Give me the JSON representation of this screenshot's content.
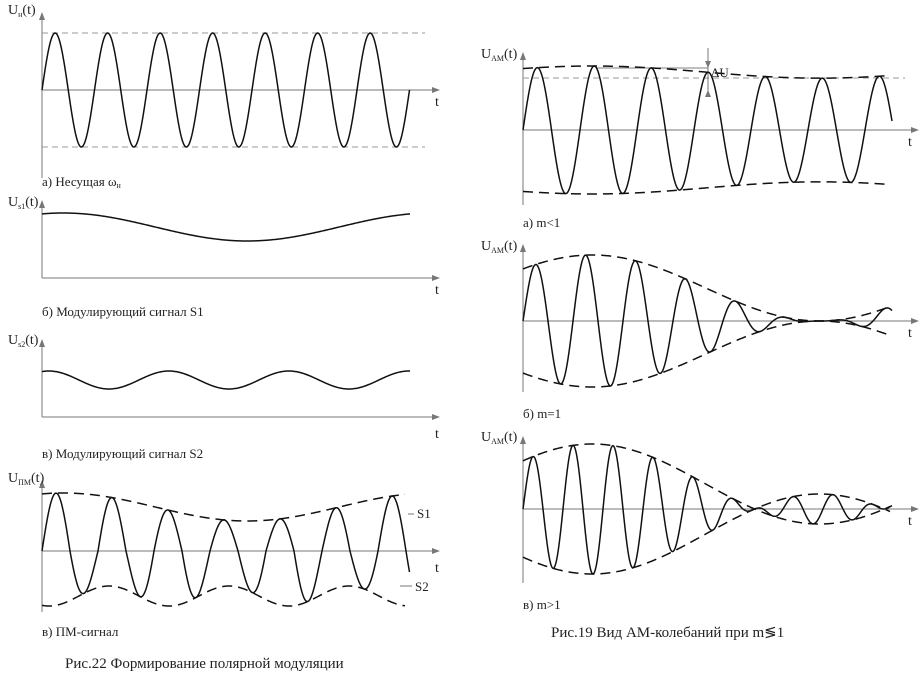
{
  "left_panels": [
    {
      "id": "carrier",
      "ylabel_main": "U",
      "ylabel_sub": "н",
      "ylabel_tail": "(t)",
      "xlabel": "t",
      "caption_main": "а) Несущая ω",
      "caption_sub": "н"
    },
    {
      "id": "mod-s1",
      "ylabel_main": "U",
      "ylabel_sub": "s1",
      "ylabel_tail": "(t)",
      "xlabel": "t",
      "caption": "б) Модулирующий сигнал S1"
    },
    {
      "id": "mod-s2",
      "ylabel_main": "U",
      "ylabel_sub": "s2",
      "ylabel_tail": "(t)",
      "xlabel": "t",
      "caption": "в) Модулирующий сигнал S2"
    },
    {
      "id": "pm-signal",
      "ylabel_main": "U",
      "ylabel_sub": "ПМ",
      "ylabel_tail": "(t)",
      "xlabel": "t",
      "caption": "в) ПМ-сигнал",
      "label_s1": "S1",
      "label_s2": "S2"
    }
  ],
  "left_figure_caption": "Рис.22  Формирование полярной модуляции",
  "right_panels": [
    {
      "id": "am-m-less-1",
      "ylabel_main": "U",
      "ylabel_sub": "AM",
      "ylabel_tail": "(t)",
      "xlabel": "t",
      "caption": "а) m<1",
      "delta_label": "ΔU",
      "m": 0.35
    },
    {
      "id": "am-m-equal-1",
      "ylabel_main": "U",
      "ylabel_sub": "AM",
      "ylabel_tail": "(t)",
      "xlabel": "t",
      "caption": "б) m=1",
      "m": 1.0
    },
    {
      "id": "am-m-greater-1",
      "ylabel_main": "U",
      "ylabel_sub": "AM",
      "ylabel_tail": "(t)",
      "xlabel": "t",
      "caption": "в) m>1",
      "m": 1.6
    }
  ],
  "right_figure_caption": "Рис.19  Вид АМ-колебаний при m≶1"
}
